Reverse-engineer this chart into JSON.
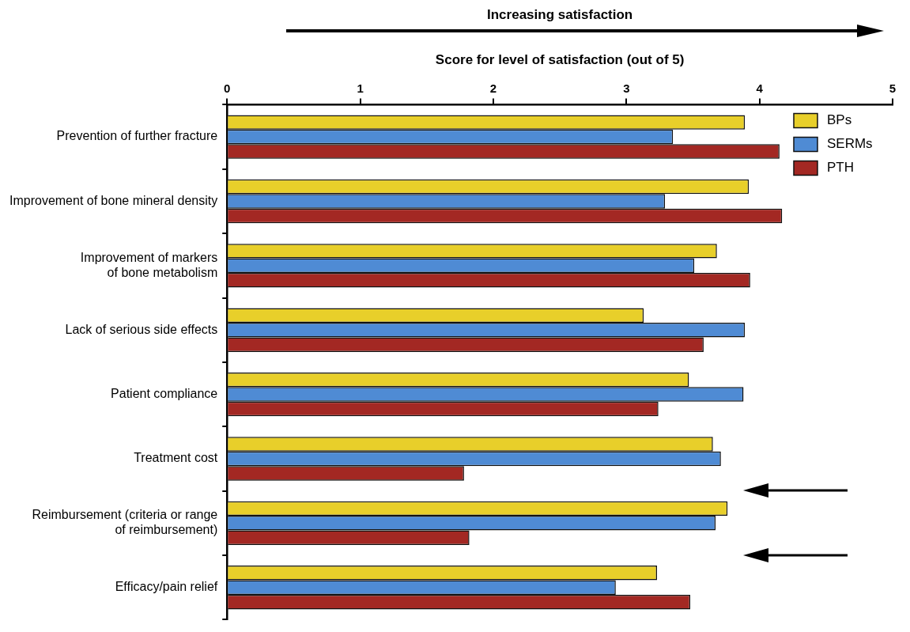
{
  "chart_data": {
    "type": "bar",
    "orientation": "horizontal",
    "xlabel": "Score for level of satisfaction (out of 5)",
    "annotations": [
      "Increasing satisfaction"
    ],
    "categories": [
      "Prevention of further fracture",
      "Improvement of bone mineral density",
      "Improvement of markers\nof bone metabolism",
      "Lack of serious side effects",
      "Patient compliance",
      "Treatment cost",
      "Reimbursement (criteria or range\nof reimbursement)",
      "Efficacy/pain relief"
    ],
    "series": [
      {
        "name": "BPs",
        "color": "#e8cf2a",
        "values": [
          3.89,
          3.92,
          3.68,
          3.13,
          3.47,
          3.65,
          3.76,
          3.23
        ]
      },
      {
        "name": "SERMs",
        "color": "#4f8bd4",
        "values": [
          3.35,
          3.29,
          3.51,
          3.89,
          3.88,
          3.71,
          3.67,
          2.92
        ]
      },
      {
        "name": "PTH",
        "color": "#a32823",
        "values": [
          4.15,
          4.17,
          3.93,
          3.58,
          3.24,
          1.78,
          1.82,
          3.48
        ]
      }
    ],
    "xlim": [
      0,
      5
    ],
    "xticks": [
      0,
      1,
      2,
      3,
      4,
      5
    ],
    "grid": false,
    "legend": "top right"
  }
}
